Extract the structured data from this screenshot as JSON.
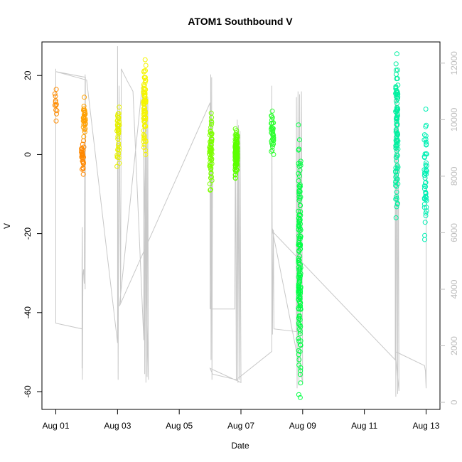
{
  "chart_data": {
    "type": "scatter",
    "title": "ATOM1 Southbound V",
    "xlabel": "Date",
    "ylabel": "V",
    "x_unit": "day",
    "x_ticks": [
      "Aug 01",
      "Aug 03",
      "Aug 05",
      "Aug 07",
      "Aug 09",
      "Aug 11",
      "Aug 13"
    ],
    "x_tick_values": [
      1,
      3,
      5,
      7,
      9,
      11,
      13
    ],
    "xlim": [
      0.55,
      13.45
    ],
    "ylim": [
      -64.5,
      28.5
    ],
    "y_ticks": [
      20,
      0,
      -20,
      -40,
      -60
    ],
    "y_tick_labels": [
      "20",
      "0",
      "-20",
      "-40",
      "-60"
    ],
    "secondary_y": {
      "ticks": [
        0,
        2000,
        4000,
        6000,
        8000,
        10000,
        12000
      ],
      "tick_labels": [
        "0",
        "2000",
        "4000",
        "6000",
        "8000",
        "10000",
        "12000"
      ],
      "ylim": [
        -250,
        12750
      ],
      "color": "#bdbdbd"
    },
    "grid": false,
    "legend": "none",
    "point_clusters": [
      {
        "x_day": 1.0,
        "y_min": 8.5,
        "y_max": 16.5,
        "color": "#ff8c00",
        "n": 12
      },
      {
        "x_day": 1.87,
        "y_min": -5,
        "y_max": 3.5,
        "color": "#ff8800",
        "n": 28
      },
      {
        "x_day": 1.92,
        "y_min": 4.5,
        "y_max": 14.5,
        "color": "#ffa000",
        "n": 30
      },
      {
        "x_day": 3.02,
        "y_min": -3,
        "y_max": 12,
        "color": "#e6f000",
        "n": 40
      },
      {
        "x_day": 3.88,
        "y_min": 0,
        "y_max": 24,
        "color": "#f5f500",
        "n": 80
      },
      {
        "x_day": 6.02,
        "y_min": -9,
        "y_max": 10.5,
        "color": "#7dff00",
        "n": 60
      },
      {
        "x_day": 6.85,
        "y_min": -6,
        "y_max": 6.5,
        "color": "#5cff00",
        "n": 120
      },
      {
        "x_day": 8.02,
        "y_min": 0,
        "y_max": 11,
        "color": "#2dff30",
        "n": 40
      },
      {
        "x_day": 8.9,
        "y_min": -61.5,
        "y_max": 7.5,
        "color": "#00ff44",
        "n": 150
      },
      {
        "x_day": 12.05,
        "y_min": -16,
        "y_max": 25.5,
        "color": "#00f0a0",
        "n": 100
      },
      {
        "x_day": 12.98,
        "y_min": -21.5,
        "y_max": 11.5,
        "color": "#00f0b4",
        "n": 50
      }
    ],
    "secondary_series": {
      "name": "",
      "color": "#c8c8c8",
      "polyline": [
        [
          1.0,
          11800
        ],
        [
          1.0,
          6000
        ],
        [
          1.0,
          2800
        ],
        [
          1.85,
          2600
        ],
        [
          1.85,
          1200
        ],
        [
          1.85,
          5000
        ],
        [
          1.86,
          6200
        ],
        [
          1.86,
          800
        ],
        [
          1.88,
          4500
        ],
        [
          1.9,
          4700
        ],
        [
          1.92,
          4200
        ],
        [
          1.95,
          11600
        ],
        [
          1.95,
          4000
        ],
        [
          1.96,
          11500
        ],
        [
          1.0,
          11700
        ],
        [
          2.0,
          11400
        ],
        [
          3.0,
          2100
        ],
        [
          3.0,
          12600
        ],
        [
          3.02,
          800
        ],
        [
          3.05,
          11200
        ],
        [
          3.1,
          3500
        ],
        [
          3.12,
          11800
        ],
        [
          3.3,
          11400
        ],
        [
          3.5,
          11000
        ],
        [
          3.85,
          2200
        ],
        [
          3.85,
          9800
        ],
        [
          3.88,
          1000
        ],
        [
          3.9,
          10500
        ],
        [
          3.92,
          700
        ],
        [
          3.94,
          11000
        ],
        [
          3.96,
          900
        ],
        [
          3.98,
          10800
        ],
        [
          4.0,
          800
        ],
        [
          3.8,
          11200
        ],
        [
          3.06,
          3400
        ],
        [
          6.0,
          10600
        ],
        [
          6.0,
          3300
        ],
        [
          6.02,
          11600
        ],
        [
          6.03,
          1500
        ],
        [
          6.05,
          11500
        ],
        [
          6.06,
          800
        ],
        [
          6.08,
          9000
        ],
        [
          6.02,
          3300
        ],
        [
          6.8,
          3300
        ],
        [
          6.82,
          9500
        ],
        [
          6.85,
          800
        ],
        [
          6.88,
          10000
        ],
        [
          6.9,
          700
        ],
        [
          6.92,
          9800
        ],
        [
          6.95,
          800
        ],
        [
          6.97,
          9600
        ],
        [
          7.0,
          700
        ],
        [
          6.0,
          1200
        ],
        [
          6.08,
          1000
        ],
        [
          6.85,
          800
        ],
        [
          8.0,
          1800
        ],
        [
          8.0,
          11200
        ],
        [
          8.02,
          2400
        ],
        [
          8.05,
          6100
        ],
        [
          8.07,
          2600
        ],
        [
          8.8,
          2500
        ],
        [
          8.8,
          10800
        ],
        [
          8.82,
          500
        ],
        [
          8.85,
          11000
        ],
        [
          8.88,
          600
        ],
        [
          8.9,
          10900
        ],
        [
          8.93,
          900
        ],
        [
          8.96,
          11000
        ],
        [
          9.0,
          700
        ],
        [
          8.0,
          6200
        ],
        [
          8.06,
          6000
        ],
        [
          12.0,
          1500
        ],
        [
          12.0,
          11000
        ],
        [
          12.02,
          200
        ],
        [
          12.05,
          10800
        ],
        [
          12.08,
          300
        ],
        [
          12.1,
          10500
        ],
        [
          12.12,
          400
        ],
        [
          12.0,
          1800
        ],
        [
          12.95,
          1300
        ],
        [
          12.98,
          1100
        ],
        [
          13.0,
          500
        ],
        [
          13.0,
          8500
        ]
      ]
    }
  }
}
